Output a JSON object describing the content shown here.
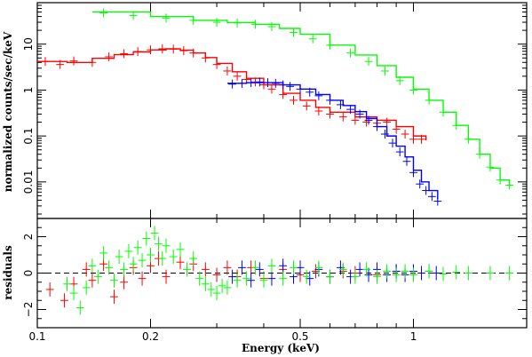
{
  "chart_data": [
    {
      "type": "scatter",
      "panel": "spectrum",
      "title": "",
      "xlabel": "Energy (keV)",
      "ylabel": "normalized counts/sec/keV",
      "xscale": "log",
      "yscale": "log",
      "xlim": [
        0.1,
        2.0
      ],
      "ylim": [
        0.0016,
        80
      ],
      "xticks": [
        0.1,
        0.2,
        0.5,
        1
      ],
      "xtick_labels": [
        "0.1",
        "0.2",
        "0.5",
        "1"
      ],
      "yticks": [
        0.01,
        0.1,
        1,
        10
      ],
      "ytick_labels": [
        "0.01",
        "0.1",
        "1",
        "10"
      ],
      "grid": false,
      "series": [
        {
          "color": "#ff0000",
          "points": [
            [
              0.105,
              4.2
            ],
            [
              0.115,
              3.6
            ],
            [
              0.125,
              4.3
            ],
            [
              0.14,
              4.0
            ],
            [
              0.155,
              5.3
            ],
            [
              0.17,
              6.2
            ],
            [
              0.185,
              6.9
            ],
            [
              0.2,
              7.5
            ],
            [
              0.215,
              7.9
            ],
            [
              0.23,
              7.8
            ],
            [
              0.245,
              7.2
            ],
            [
              0.26,
              6.4
            ],
            [
              0.28,
              5.0
            ],
            [
              0.3,
              3.6
            ],
            [
              0.32,
              2.6
            ],
            [
              0.34,
              2.0
            ],
            [
              0.36,
              1.7
            ],
            [
              0.38,
              1.5
            ],
            [
              0.4,
              1.3
            ],
            [
              0.42,
              1.05
            ],
            [
              0.45,
              0.8
            ],
            [
              0.48,
              0.6
            ],
            [
              0.52,
              0.45
            ],
            [
              0.56,
              0.35
            ],
            [
              0.6,
              0.3
            ],
            [
              0.65,
              0.26
            ],
            [
              0.7,
              0.22
            ],
            [
              0.75,
              0.2
            ],
            [
              0.8,
              0.19
            ],
            [
              0.85,
              0.2
            ],
            [
              0.9,
              0.14
            ],
            [
              0.95,
              0.11
            ],
            [
              1.0,
              0.085
            ],
            [
              1.05,
              0.085
            ]
          ],
          "model": [
            [
              0.1,
              4.2
            ],
            [
              0.12,
              4.0
            ],
            [
              0.14,
              4.9
            ],
            [
              0.16,
              5.9
            ],
            [
              0.18,
              6.8
            ],
            [
              0.2,
              7.5
            ],
            [
              0.22,
              7.9
            ],
            [
              0.24,
              7.4
            ],
            [
              0.26,
              6.4
            ],
            [
              0.28,
              5.1
            ],
            [
              0.3,
              3.8
            ],
            [
              0.33,
              2.5
            ],
            [
              0.36,
              1.8
            ],
            [
              0.4,
              1.3
            ],
            [
              0.45,
              0.85
            ],
            [
              0.5,
              0.6
            ],
            [
              0.55,
              0.42
            ],
            [
              0.6,
              0.33
            ],
            [
              0.7,
              0.26
            ],
            [
              0.8,
              0.22
            ],
            [
              0.9,
              0.16
            ],
            [
              1.0,
              0.1
            ],
            [
              1.08,
              0.08
            ]
          ]
        },
        {
          "color": "#0000ff",
          "points": [
            [
              0.33,
              1.35
            ],
            [
              0.35,
              1.4
            ],
            [
              0.37,
              1.45
            ],
            [
              0.39,
              1.5
            ],
            [
              0.41,
              1.45
            ],
            [
              0.43,
              1.4
            ],
            [
              0.45,
              1.3
            ],
            [
              0.47,
              1.2
            ],
            [
              0.5,
              1.05
            ],
            [
              0.53,
              0.9
            ],
            [
              0.56,
              0.75
            ],
            [
              0.6,
              0.6
            ],
            [
              0.64,
              0.48
            ],
            [
              0.68,
              0.38
            ],
            [
              0.72,
              0.3
            ],
            [
              0.76,
              0.22
            ],
            [
              0.8,
              0.16
            ],
            [
              0.84,
              0.11
            ],
            [
              0.88,
              0.07
            ],
            [
              0.92,
              0.045
            ],
            [
              0.96,
              0.028
            ],
            [
              1.0,
              0.016
            ],
            [
              1.04,
              0.009
            ],
            [
              1.08,
              0.0065
            ],
            [
              1.12,
              0.0048
            ],
            [
              1.16,
              0.0038
            ]
          ],
          "model": [
            [
              0.32,
              1.4
            ],
            [
              0.36,
              1.45
            ],
            [
              0.4,
              1.45
            ],
            [
              0.45,
              1.3
            ],
            [
              0.5,
              1.05
            ],
            [
              0.55,
              0.8
            ],
            [
              0.6,
              0.6
            ],
            [
              0.65,
              0.46
            ],
            [
              0.7,
              0.34
            ],
            [
              0.75,
              0.24
            ],
            [
              0.8,
              0.16
            ],
            [
              0.85,
              0.1
            ],
            [
              0.9,
              0.06
            ],
            [
              0.95,
              0.035
            ],
            [
              1.0,
              0.018
            ],
            [
              1.05,
              0.01
            ],
            [
              1.1,
              0.0065
            ],
            [
              1.16,
              0.0042
            ]
          ]
        },
        {
          "color": "#00ff00",
          "points": [
            [
              0.15,
              48
            ],
            [
              0.18,
              42
            ],
            [
              0.22,
              37
            ],
            [
              0.26,
              33
            ],
            [
              0.3,
              30
            ],
            [
              0.34,
              29
            ],
            [
              0.38,
              27
            ],
            [
              0.42,
              24
            ],
            [
              0.48,
              18
            ],
            [
              0.54,
              13
            ],
            [
              0.6,
              9.5
            ],
            [
              0.68,
              6.4
            ],
            [
              0.76,
              4.2
            ],
            [
              0.84,
              2.6
            ],
            [
              0.92,
              1.6
            ],
            [
              1.0,
              1.0
            ],
            [
              1.1,
              0.6
            ],
            [
              1.2,
              0.33
            ],
            [
              1.3,
              0.17
            ],
            [
              1.4,
              0.085
            ],
            [
              1.5,
              0.04
            ],
            [
              1.6,
              0.021
            ],
            [
              1.7,
              0.011
            ],
            [
              1.8,
              0.0085
            ]
          ],
          "model": [
            [
              0.14,
              50
            ],
            [
              0.2,
              40
            ],
            [
              0.26,
              33
            ],
            [
              0.32,
              29.5
            ],
            [
              0.38,
              27
            ],
            [
              0.44,
              22
            ],
            [
              0.5,
              16.5
            ],
            [
              0.6,
              9.5
            ],
            [
              0.7,
              5.8
            ],
            [
              0.8,
              3.4
            ],
            [
              0.9,
              1.9
            ],
            [
              1.0,
              1.05
            ],
            [
              1.1,
              0.6
            ],
            [
              1.2,
              0.33
            ],
            [
              1.3,
              0.17
            ],
            [
              1.4,
              0.085
            ],
            [
              1.5,
              0.04
            ],
            [
              1.6,
              0.02
            ],
            [
              1.7,
              0.011
            ],
            [
              1.8,
              0.0085
            ]
          ]
        }
      ]
    },
    {
      "type": "scatter",
      "panel": "residuals",
      "title": "",
      "xlabel": "Energy (keV)",
      "ylabel": "residuals",
      "xscale": "log",
      "yscale": "linear",
      "xlim": [
        0.1,
        2.0
      ],
      "ylim": [
        -3.0,
        3.0
      ],
      "yticks": [
        -2,
        0,
        2
      ],
      "ytick_labels": [
        "−2",
        "0",
        "2"
      ],
      "zero_line": 0,
      "grid": false,
      "series": [
        {
          "color": "#ff0000",
          "points": [
            [
              0.108,
              -0.9
            ],
            [
              0.118,
              -1.5
            ],
            [
              0.125,
              -0.6
            ],
            [
              0.135,
              0.2
            ],
            [
              0.14,
              -0.4
            ],
            [
              0.15,
              0.5
            ],
            [
              0.16,
              -1.3
            ],
            [
              0.17,
              -0.5
            ],
            [
              0.18,
              0.3
            ],
            [
              0.19,
              -0.3
            ],
            [
              0.2,
              0.4
            ],
            [
              0.21,
              0.8
            ],
            [
              0.22,
              -0.2
            ],
            [
              0.24,
              0.6
            ],
            [
              0.26,
              0.5
            ],
            [
              0.28,
              0.2
            ],
            [
              0.3,
              -0.1
            ],
            [
              0.32,
              0.3
            ],
            [
              0.34,
              -0.2
            ],
            [
              0.37,
              0.3
            ],
            [
              0.4,
              -0.3
            ],
            [
              0.45,
              0.2
            ],
            [
              0.5,
              -0.1
            ],
            [
              0.55,
              0.1
            ],
            [
              0.6,
              -0.2
            ],
            [
              0.65,
              0.1
            ],
            [
              0.7,
              0.0
            ],
            [
              0.8,
              -0.1
            ],
            [
              0.9,
              0.1
            ]
          ]
        },
        {
          "color": "#0000ff",
          "points": [
            [
              0.33,
              -0.2
            ],
            [
              0.35,
              0.3
            ],
            [
              0.37,
              -0.4
            ],
            [
              0.39,
              0.2
            ],
            [
              0.42,
              -0.3
            ],
            [
              0.45,
              0.4
            ],
            [
              0.48,
              -0.2
            ],
            [
              0.5,
              0.3
            ],
            [
              0.53,
              -0.3
            ],
            [
              0.56,
              0.2
            ],
            [
              0.6,
              -0.2
            ],
            [
              0.64,
              0.3
            ],
            [
              0.68,
              -0.2
            ],
            [
              0.72,
              0.2
            ],
            [
              0.76,
              -0.1
            ],
            [
              0.8,
              0.2
            ],
            [
              0.85,
              -0.1
            ],
            [
              0.9,
              0.1
            ],
            [
              0.95,
              -0.1
            ],
            [
              1.0,
              0.1
            ],
            [
              1.05,
              0.0
            ],
            [
              1.1,
              0.1
            ],
            [
              1.15,
              0.0
            ]
          ]
        },
        {
          "color": "#00ff00",
          "points": [
            [
              0.12,
              -0.6
            ],
            [
              0.125,
              -1.1
            ],
            [
              0.13,
              -1.9
            ],
            [
              0.135,
              -0.8
            ],
            [
              0.14,
              0.4
            ],
            [
              0.145,
              -0.2
            ],
            [
              0.15,
              1.1
            ],
            [
              0.155,
              0.3
            ],
            [
              0.16,
              -0.4
            ],
            [
              0.165,
              0.9
            ],
            [
              0.17,
              0.2
            ],
            [
              0.175,
              1.2
            ],
            [
              0.18,
              0.5
            ],
            [
              0.185,
              1.4
            ],
            [
              0.19,
              0.7
            ],
            [
              0.195,
              1.9
            ],
            [
              0.2,
              1.0
            ],
            [
              0.205,
              2.2
            ],
            [
              0.21,
              1.6
            ],
            [
              0.215,
              0.8
            ],
            [
              0.22,
              1.5
            ],
            [
              0.23,
              0.9
            ],
            [
              0.24,
              1.3
            ],
            [
              0.25,
              0.2
            ],
            [
              0.26,
              0.8
            ],
            [
              0.27,
              -0.3
            ],
            [
              0.28,
              -0.6
            ],
            [
              0.29,
              -0.9
            ],
            [
              0.3,
              -1.1
            ],
            [
              0.31,
              -0.7
            ],
            [
              0.32,
              -0.8
            ],
            [
              0.34,
              -0.4
            ],
            [
              0.36,
              -0.3
            ],
            [
              0.38,
              0.3
            ],
            [
              0.4,
              -0.4
            ],
            [
              0.42,
              0.4
            ],
            [
              0.45,
              -0.3
            ],
            [
              0.48,
              0.3
            ],
            [
              0.52,
              -0.2
            ],
            [
              0.56,
              0.3
            ],
            [
              0.6,
              -0.2
            ],
            [
              0.65,
              0.2
            ],
            [
              0.7,
              -0.2
            ],
            [
              0.75,
              0.2
            ],
            [
              0.8,
              -0.2
            ],
            [
              0.85,
              0.1
            ],
            [
              0.9,
              -0.1
            ],
            [
              0.95,
              0.1
            ],
            [
              1.0,
              -0.1
            ],
            [
              1.1,
              0.1
            ],
            [
              1.2,
              -0.05
            ],
            [
              1.3,
              0.05
            ],
            [
              1.4,
              0.0
            ],
            [
              1.6,
              0.0
            ],
            [
              1.8,
              0.0
            ]
          ]
        }
      ]
    }
  ]
}
